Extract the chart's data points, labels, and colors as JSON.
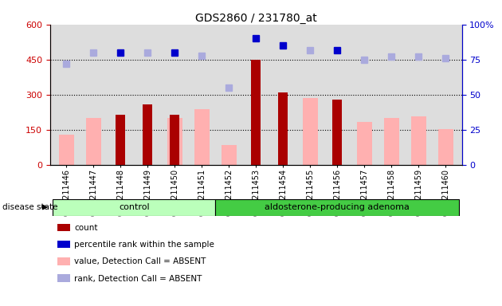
{
  "title": "GDS2860 / 231780_at",
  "samples": [
    "GSM211446",
    "GSM211447",
    "GSM211448",
    "GSM211449",
    "GSM211450",
    "GSM211451",
    "GSM211452",
    "GSM211453",
    "GSM211454",
    "GSM211455",
    "GSM211456",
    "GSM211457",
    "GSM211458",
    "GSM211459",
    "GSM211460"
  ],
  "count_values": [
    null,
    null,
    215,
    260,
    215,
    null,
    null,
    450,
    310,
    null,
    280,
    null,
    null,
    null,
    null
  ],
  "value_absent": [
    130,
    200,
    null,
    null,
    200,
    240,
    85,
    null,
    null,
    285,
    null,
    185,
    200,
    210,
    155
  ],
  "percentile_dark_pct": [
    null,
    null,
    80,
    null,
    80,
    null,
    null,
    90,
    85,
    null,
    82,
    null,
    null,
    null,
    null
  ],
  "percentile_light_pct": [
    72,
    80,
    null,
    80,
    null,
    78,
    55,
    null,
    null,
    82,
    null,
    75,
    77,
    77,
    76
  ],
  "control_indices": [
    0,
    1,
    2,
    3,
    4,
    5
  ],
  "adenoma_indices": [
    6,
    7,
    8,
    9,
    10,
    11,
    12,
    13,
    14
  ],
  "group_labels": [
    "control",
    "aldosterone-producing adenoma"
  ],
  "ylim_left": [
    0,
    600
  ],
  "yticks_left": [
    0,
    150,
    300,
    450,
    600
  ],
  "yticks_right": [
    0,
    25,
    50,
    75,
    100
  ],
  "right_tick_labels": [
    "0",
    "25",
    "50",
    "75",
    "100%"
  ],
  "hlines": [
    150,
    300,
    450
  ],
  "colors": {
    "count_dark": "#AA0000",
    "value_absent": "#FFB0B0",
    "percentile_dark": "#0000CC",
    "percentile_light": "#AAAADD",
    "control_bg": "#BBFFBB",
    "adenoma_bg": "#44CC44",
    "plot_bg": "#DDDDDD",
    "left_axis_color": "#CC0000",
    "right_axis_color": "#0000CC"
  },
  "legend_items": [
    {
      "label": "count",
      "color": "#AA0000"
    },
    {
      "label": "percentile rank within the sample",
      "color": "#0000CC"
    },
    {
      "label": "value, Detection Call = ABSENT",
      "color": "#FFB0B0"
    },
    {
      "label": "rank, Detection Call = ABSENT",
      "color": "#AAAADD"
    }
  ],
  "disease_state_label": "disease state"
}
